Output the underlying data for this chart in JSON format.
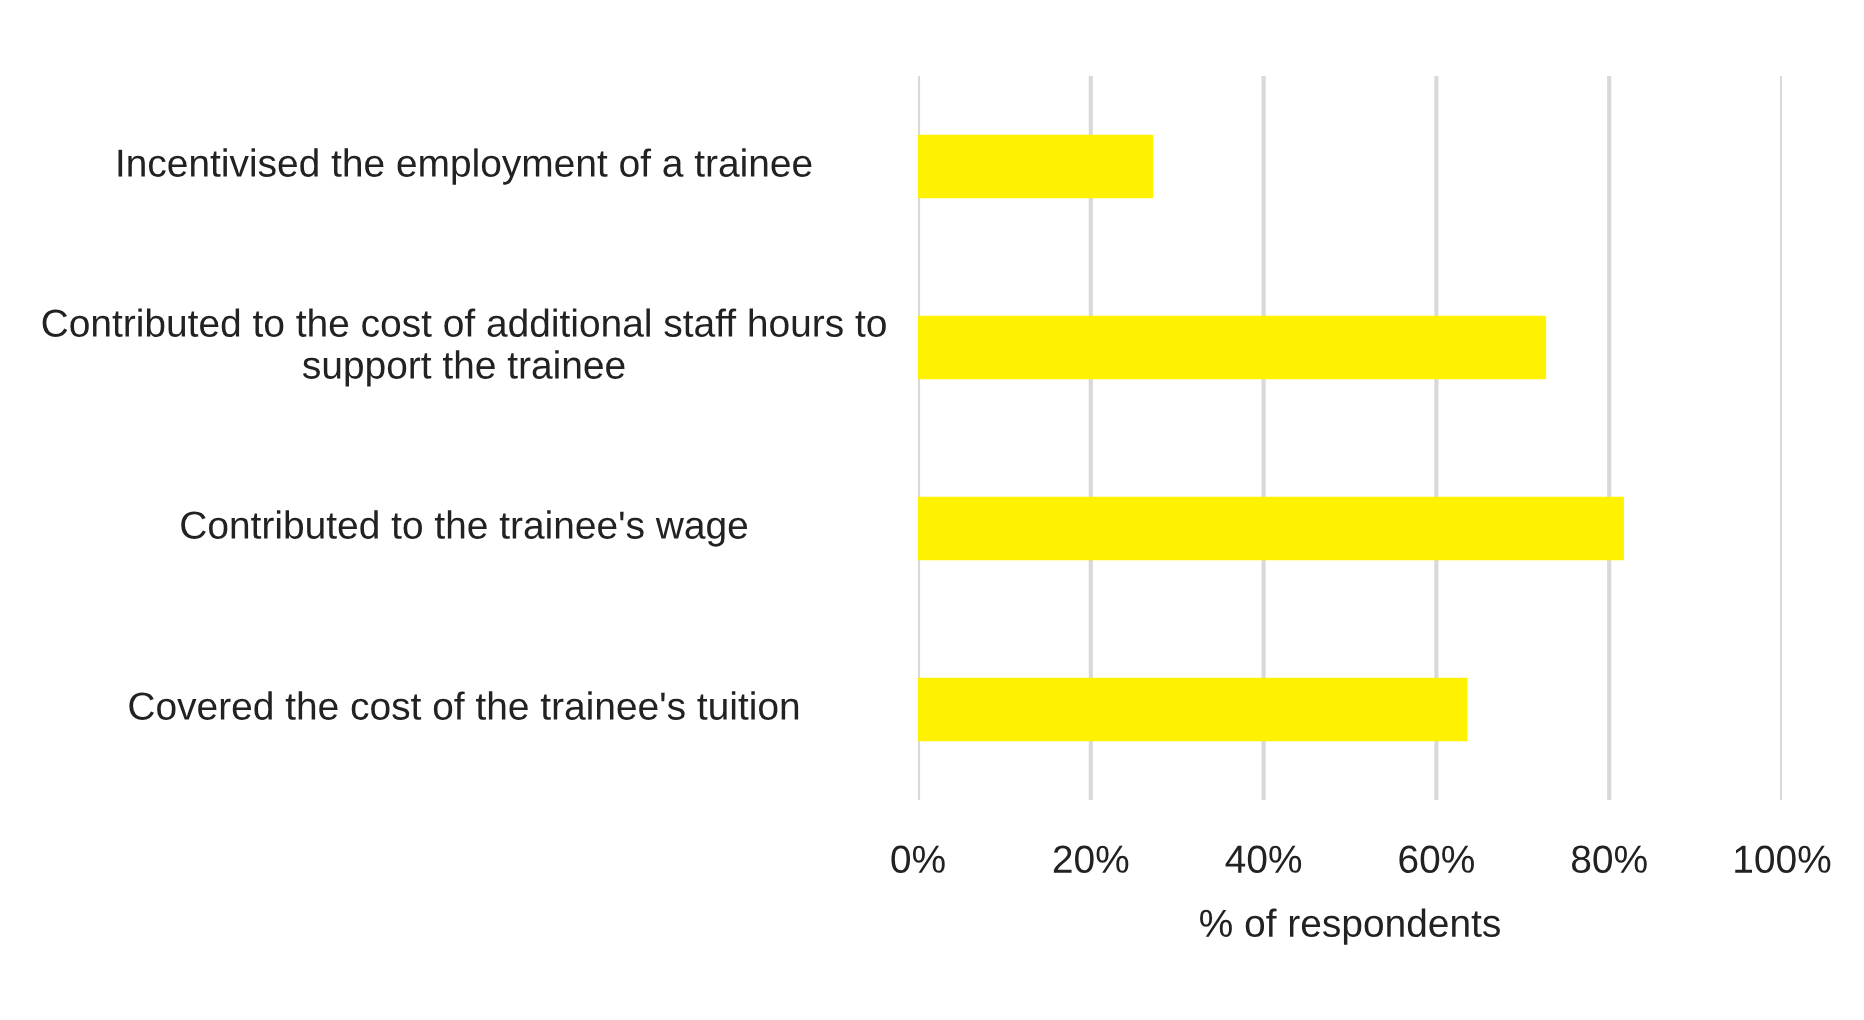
{
  "chart_data": {
    "type": "bar",
    "orientation": "horizontal",
    "xlabel": "% of respondents",
    "categories": [
      "Incentivised the employment of a trainee",
      "Contributed to the cost of additional staff hours to support the trainee",
      "Contributed to the trainee's wage",
      "Covered the cost of the trainee's tuition"
    ],
    "values": [
      27.2,
      72.7,
      81.7,
      63.6
    ],
    "color": "#fff200",
    "xlim": [
      0,
      100
    ],
    "xticks": [
      {
        "value": 0,
        "label": "0%"
      },
      {
        "value": 20,
        "label": "20%"
      },
      {
        "value": 40,
        "label": "40%"
      },
      {
        "value": 60,
        "label": "60%"
      },
      {
        "value": 80,
        "label": "80%"
      },
      {
        "value": 100,
        "label": "100%"
      }
    ],
    "grid": "x",
    "legend": false
  }
}
